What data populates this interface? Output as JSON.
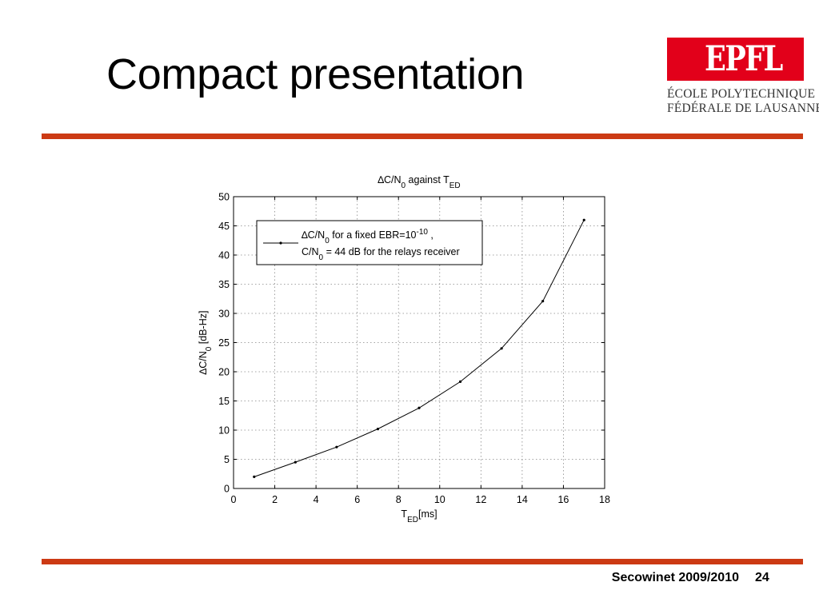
{
  "slide": {
    "title": "Compact presentation",
    "footer": "Secowinet 2009/2010",
    "page_number": "24",
    "accent_color": "#cc3a14"
  },
  "logo": {
    "mark": "EPFL",
    "line1": "ÉCOLE POLYTECHNIQUE",
    "line2": "FÉDÉRALE DE LAUSANNE",
    "color": "#e2001a"
  },
  "chart_data": {
    "type": "line",
    "title": {
      "prefix": "∆C/N",
      "prefix_sub": "0",
      "middle": " against T",
      "suffix_sub": "ED"
    },
    "xlabel": {
      "main": "T",
      "sub": "ED",
      "unit": "[ms]"
    },
    "ylabel": {
      "main": "∆C/N",
      "sub": "0",
      "unit": " [dB-Hz]"
    },
    "xlim": [
      0,
      18
    ],
    "ylim": [
      0,
      50
    ],
    "xticks": [
      0,
      2,
      4,
      6,
      8,
      10,
      12,
      14,
      16,
      18
    ],
    "yticks": [
      0,
      5,
      10,
      15,
      20,
      25,
      30,
      35,
      40,
      45,
      50
    ],
    "grid": true,
    "legend_position": "top-left",
    "legend": {
      "line1_a": "∆C/N",
      "line1_sub": "0",
      "line1_b": " for a fixed EBR=10",
      "line1_sup": "-10",
      "line1_c": " ,",
      "line2_a": "C/N",
      "line2_sub": "0",
      "line2_b": " = 44 dB for the relays receiver"
    },
    "series": [
      {
        "x": [
          1,
          3,
          5,
          7,
          9,
          11,
          13,
          15,
          17
        ],
        "y": [
          2.0,
          4.5,
          7.1,
          10.2,
          13.8,
          18.3,
          24.0,
          32.1,
          46.0
        ]
      }
    ]
  }
}
